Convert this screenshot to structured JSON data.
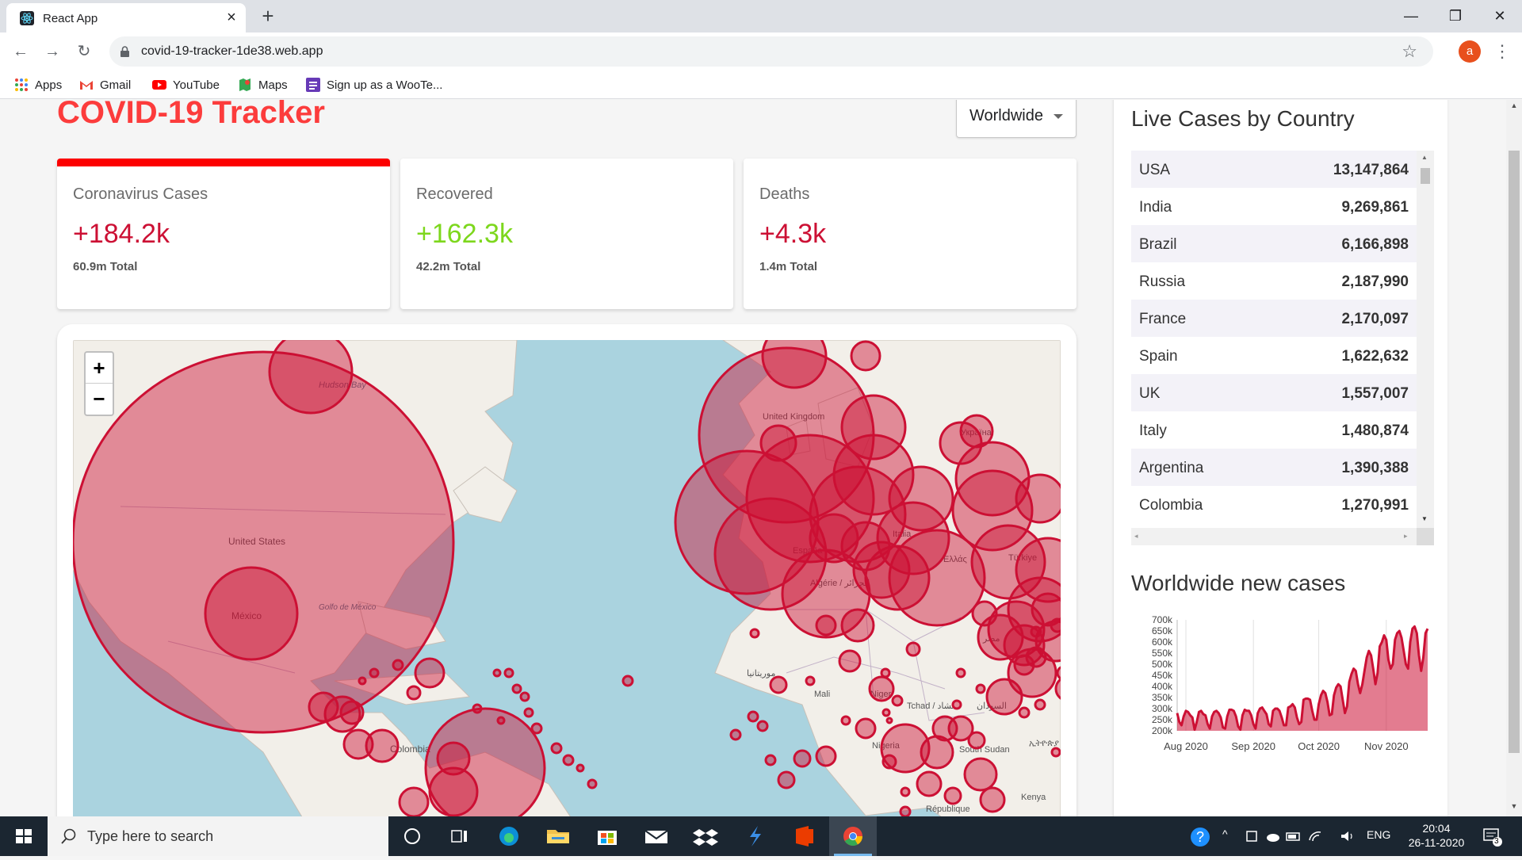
{
  "browser": {
    "tab_title": "React App",
    "url": "covid-19-tracker-1de38.web.app",
    "profile_initial": "a",
    "bookmarks": [
      "Apps",
      "Gmail",
      "YouTube",
      "Maps",
      "Sign up as a WooTe..."
    ]
  },
  "header": {
    "title": "COVID-19 Tracker",
    "dropdown_value": "Worldwide"
  },
  "cards": [
    {
      "label": "Coronavirus Cases",
      "today": "+184.2k",
      "total": "60.9m Total",
      "color": "#cc1034"
    },
    {
      "label": "Recovered",
      "today": "+162.3k",
      "total": "42.2m Total",
      "color": "#7dd71d"
    },
    {
      "label": "Deaths",
      "today": "+4.3k",
      "total": "1.4m Total",
      "color": "#cc1034"
    }
  ],
  "map": {
    "zoom_in": "+",
    "zoom_out": "−",
    "labels": [
      "Hudson Bay",
      "United States",
      "México",
      "Golfo de México",
      "Colombia",
      "United Kingdom",
      "España",
      "Algérie / الجزائر",
      "Mali",
      "Niger",
      "Tchad / تشاد",
      "Nigeria",
      "South Sudan",
      "Türkiye",
      "République",
      "مصر",
      "السودان",
      "Україна",
      "Italia",
      "Ελλάς",
      "موريتانيا",
      "Kenya",
      "ኢትዮጵያ"
    ],
    "bubble_color": "#cc1034"
  },
  "sidebar": {
    "table_title": "Live Cases by Country",
    "rows": [
      {
        "country": "USA",
        "cases": "13,147,864"
      },
      {
        "country": "India",
        "cases": "9,269,861"
      },
      {
        "country": "Brazil",
        "cases": "6,166,898"
      },
      {
        "country": "Russia",
        "cases": "2,187,990"
      },
      {
        "country": "France",
        "cases": "2,170,097"
      },
      {
        "country": "Spain",
        "cases": "1,622,632"
      },
      {
        "country": "UK",
        "cases": "1,557,007"
      },
      {
        "country": "Italy",
        "cases": "1,480,874"
      },
      {
        "country": "Argentina",
        "cases": "1,390,388"
      },
      {
        "country": "Colombia",
        "cases": "1,270,991"
      }
    ],
    "graph_title": "Worldwide new cases"
  },
  "chart_data": {
    "type": "area",
    "title": "Worldwide new cases",
    "xlabel": "",
    "ylabel": "",
    "x_ticks": [
      "Aug 2020",
      "Sep 2020",
      "Oct 2020",
      "Nov 2020"
    ],
    "y_ticks": [
      "200k",
      "250k",
      "300k",
      "350k",
      "400k",
      "450k",
      "500k",
      "550k",
      "600k",
      "650k",
      "700k"
    ],
    "ylim": [
      200000,
      700000
    ],
    "x_start": "2020-07-28",
    "values": [
      280000,
      240000,
      225000,
      265000,
      290000,
      285000,
      270000,
      260000,
      205000,
      240000,
      285000,
      290000,
      275000,
      270000,
      230000,
      210000,
      265000,
      285000,
      290000,
      280000,
      260000,
      215000,
      210000,
      265000,
      295000,
      295000,
      290000,
      265000,
      220000,
      205000,
      270000,
      295000,
      290000,
      290000,
      270000,
      230000,
      210000,
      280000,
      300000,
      305000,
      290000,
      275000,
      230000,
      220000,
      290000,
      300000,
      300000,
      290000,
      260000,
      225000,
      225000,
      305000,
      310000,
      320000,
      305000,
      260000,
      230000,
      240000,
      340000,
      345000,
      345000,
      340000,
      290000,
      250000,
      250000,
      320000,
      360000,
      380000,
      370000,
      330000,
      270000,
      275000,
      360000,
      395000,
      410000,
      400000,
      340000,
      280000,
      310000,
      420000,
      455000,
      480000,
      470000,
      410000,
      370000,
      410000,
      470000,
      530000,
      560000,
      540000,
      480000,
      410000,
      460000,
      580000,
      600000,
      630000,
      610000,
      520000,
      480000,
      500000,
      610000,
      640000,
      650000,
      620000,
      560000,
      500000,
      480000,
      600000,
      660000,
      670000,
      640000,
      540000,
      470000,
      530000,
      640000,
      660000
    ],
    "fill_color": "#cc1034"
  },
  "taskbar": {
    "search_placeholder": "Type here to search",
    "lang": "ENG",
    "time": "20:04",
    "date": "26-11-2020",
    "notification_count": "3"
  }
}
